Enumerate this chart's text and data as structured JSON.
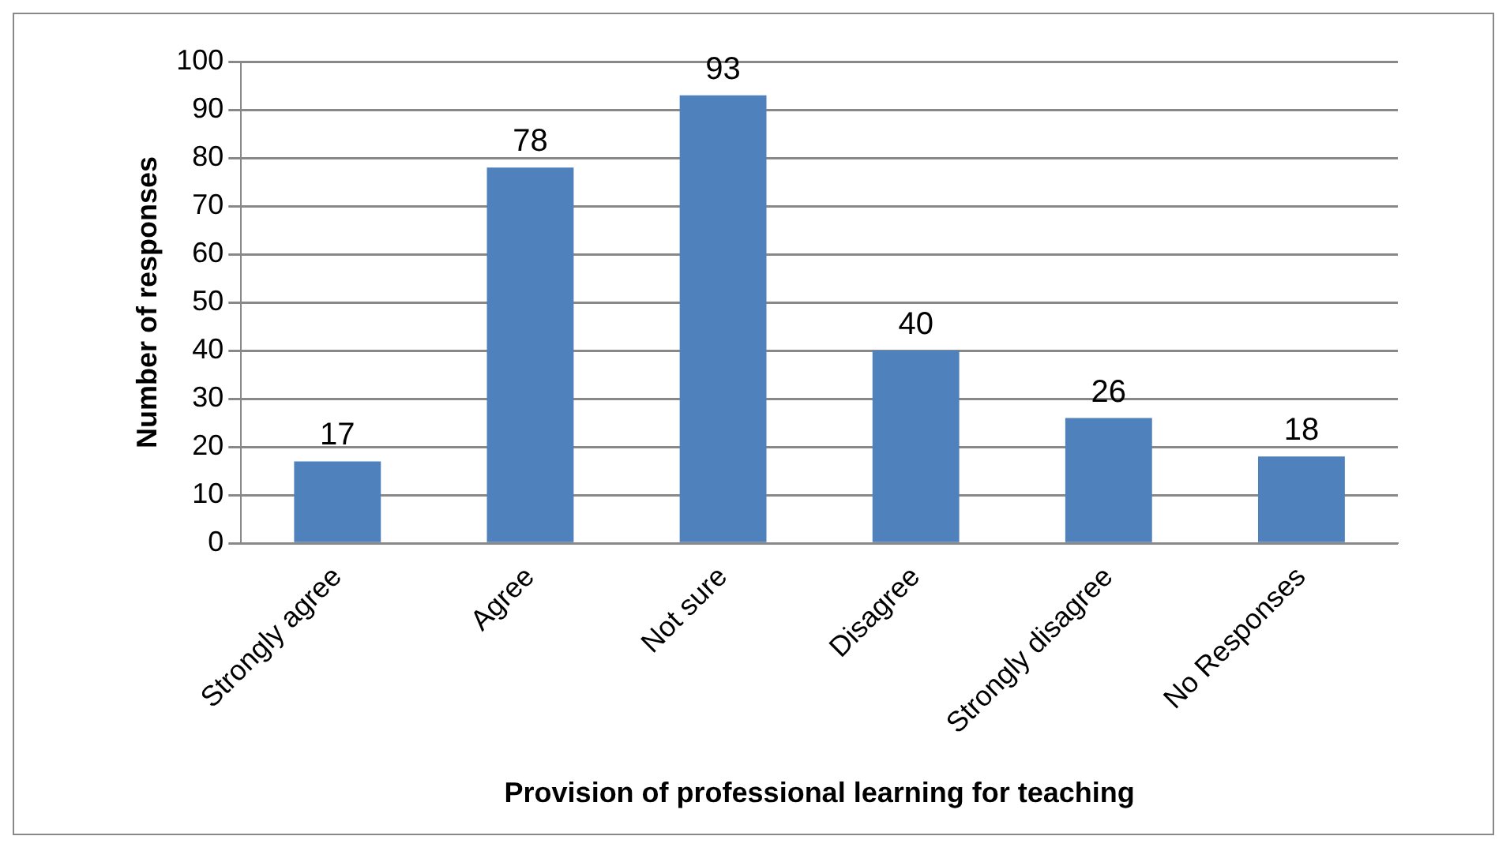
{
  "chart_data": {
    "type": "bar",
    "xlabel": "Provision of professional learning for teaching",
    "ylabel": "Number of responses",
    "categories": [
      "Strongly agree",
      "Agree",
      "Not sure",
      "Disagree",
      "Strongly disagree",
      "No Responses"
    ],
    "values": [
      17,
      78,
      93,
      40,
      26,
      18
    ],
    "color": "#4f81bd",
    "ylim": [
      0,
      100
    ],
    "yticks": [
      0,
      10,
      20,
      30,
      40,
      50,
      60,
      70,
      80,
      90,
      100
    ],
    "grid": "y",
    "data_labels": true,
    "legend": false
  }
}
